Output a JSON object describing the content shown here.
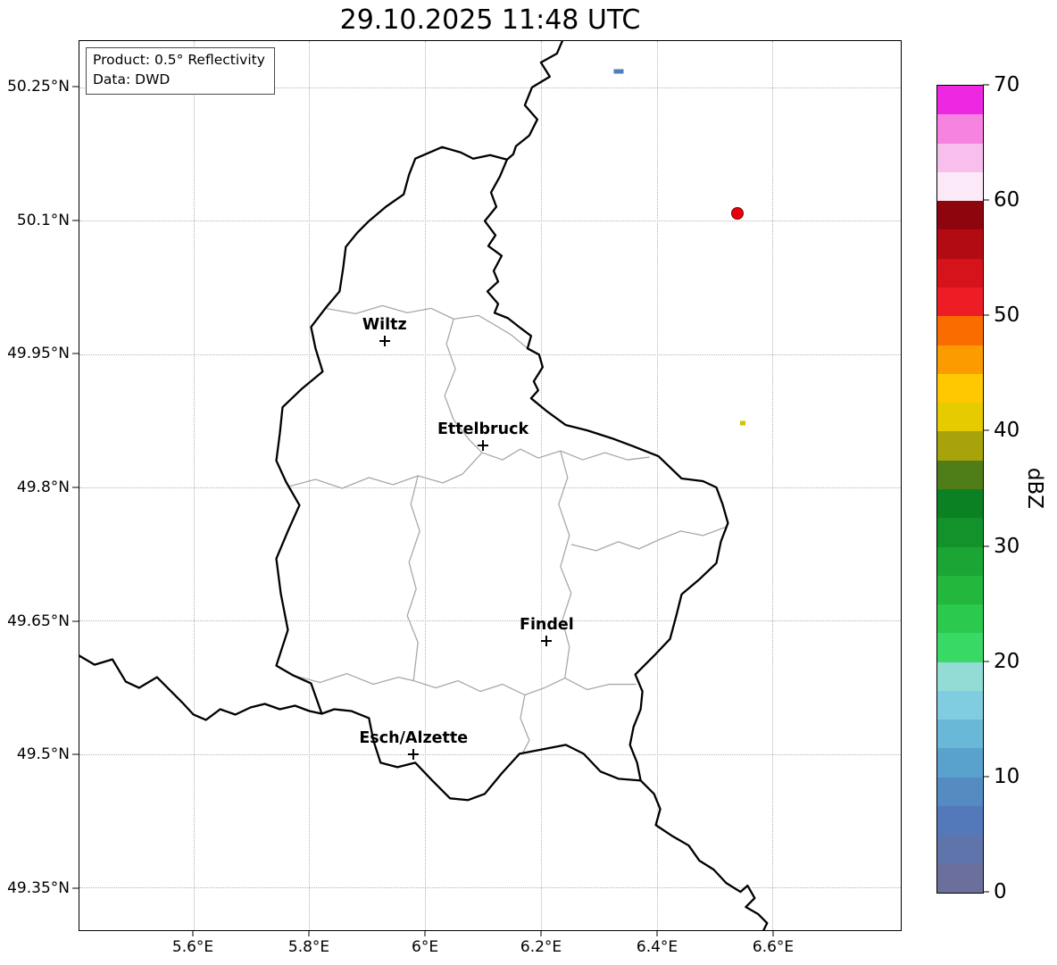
{
  "title": "29.10.2025 11:48 UTC",
  "info_box": {
    "product": "Product: 0.5° Reflectivity",
    "source": "Data: DWD"
  },
  "map": {
    "extent": {
      "lon_min": 5.403,
      "lon_max": 6.8215,
      "lat_min": 49.302,
      "lat_max": 50.302
    },
    "x_ticks": [
      {
        "label": "5.6°E",
        "lon": 5.6
      },
      {
        "label": "5.8°E",
        "lon": 5.8
      },
      {
        "label": "6°E",
        "lon": 6.0
      },
      {
        "label": "6.2°E",
        "lon": 6.2
      },
      {
        "label": "6.4°E",
        "lon": 6.4
      },
      {
        "label": "6.6°E",
        "lon": 6.6
      }
    ],
    "y_ticks": [
      {
        "label": "50.25°N",
        "lat": 50.25
      },
      {
        "label": "50.1°N",
        "lat": 50.1
      },
      {
        "label": "49.95°N",
        "lat": 49.95
      },
      {
        "label": "49.8°N",
        "lat": 49.8
      },
      {
        "label": "49.65°N",
        "lat": 49.65
      },
      {
        "label": "49.5°N",
        "lat": 49.5
      },
      {
        "label": "49.35°N",
        "lat": 49.35
      }
    ],
    "cities": [
      {
        "name": "Wiltz",
        "lon": 5.93,
        "lat": 49.965
      },
      {
        "name": "Ettelbruck",
        "lon": 6.1,
        "lat": 49.847
      },
      {
        "name": "Findel",
        "lon": 6.21,
        "lat": 49.627
      },
      {
        "name": "Esch/Alzette",
        "lon": 5.98,
        "lat": 49.5
      }
    ],
    "echoes": [
      {
        "lon": 6.335,
        "lat": 50.268,
        "dbz": 8,
        "color": "#4d7fb8",
        "shape": "rect",
        "w": 11,
        "h": 5
      },
      {
        "lon": 6.54,
        "lat": 50.108,
        "dbz": 52,
        "color": "#e8000d",
        "edge": "#7d0009",
        "shape": "circle",
        "w": 12,
        "h": 12
      },
      {
        "lon": 6.548,
        "lat": 49.872,
        "dbz": 40,
        "color": "#cfc400",
        "shape": "rect",
        "w": 6,
        "h": 5
      }
    ]
  },
  "colorbar": {
    "label": "dBZ",
    "min": 0,
    "max": 70,
    "tick_values": [
      0,
      10,
      20,
      30,
      40,
      50,
      60,
      70
    ],
    "colors_bottom_to_top": [
      "#6b6f9b",
      "#5e74ab",
      "#5379ba",
      "#548cc2",
      "#58a2cd",
      "#6ab8d7",
      "#80cce1",
      "#92dcd5",
      "#39d966",
      "#2cc94f",
      "#23b73e",
      "#1ba534",
      "#13922b",
      "#0c8123",
      "#4f7d17",
      "#a8a30b",
      "#e5cb00",
      "#ffc800",
      "#fc9b00",
      "#fa6c00",
      "#ee1c25",
      "#d6121b",
      "#b30b13",
      "#8f050d",
      "#fce9f7",
      "#f9bfec",
      "#f783e0",
      "#ee28e2"
    ]
  }
}
